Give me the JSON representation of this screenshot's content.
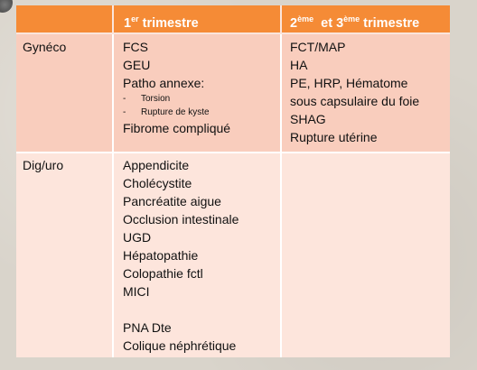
{
  "header": {
    "col0": "",
    "col1": {
      "num": "1",
      "sup": "er",
      "rest": " trimestre"
    },
    "col2": {
      "num1": "2",
      "sup1": "ème",
      "mid": "  et 3",
      "sup2": "ème",
      "rest": " trimestre"
    }
  },
  "rows": [
    {
      "label": "Gynéco",
      "first": {
        "items": [
          "FCS",
          "GEU",
          "Patho annexe:"
        ],
        "sub_items": [
          "Torsion",
          "Rupture de kyste"
        ],
        "after": "Fibrome compliqué"
      },
      "second": [
        "FCT/MAP",
        "HA",
        "PE, HRP, Hématome",
        "sous capsulaire du foie",
        "SHAG",
        "Rupture utérine"
      ]
    },
    {
      "label": "Dig/uro",
      "first": {
        "items": [
          "Appendicite",
          "Cholécystite",
          "Pancréatite aigue",
          "Occlusion intestinale",
          "UGD",
          "Hépatopathie",
          "Colopathie fctl",
          "MICI"
        ],
        "items2": [
          "PNA Dte",
          "Colique néphrétique"
        ]
      },
      "second": []
    }
  ],
  "colors": {
    "header": "#f58b36",
    "row1": "#f9cdbd",
    "row2": "#fde5dc",
    "background": "#d9d4cb"
  }
}
